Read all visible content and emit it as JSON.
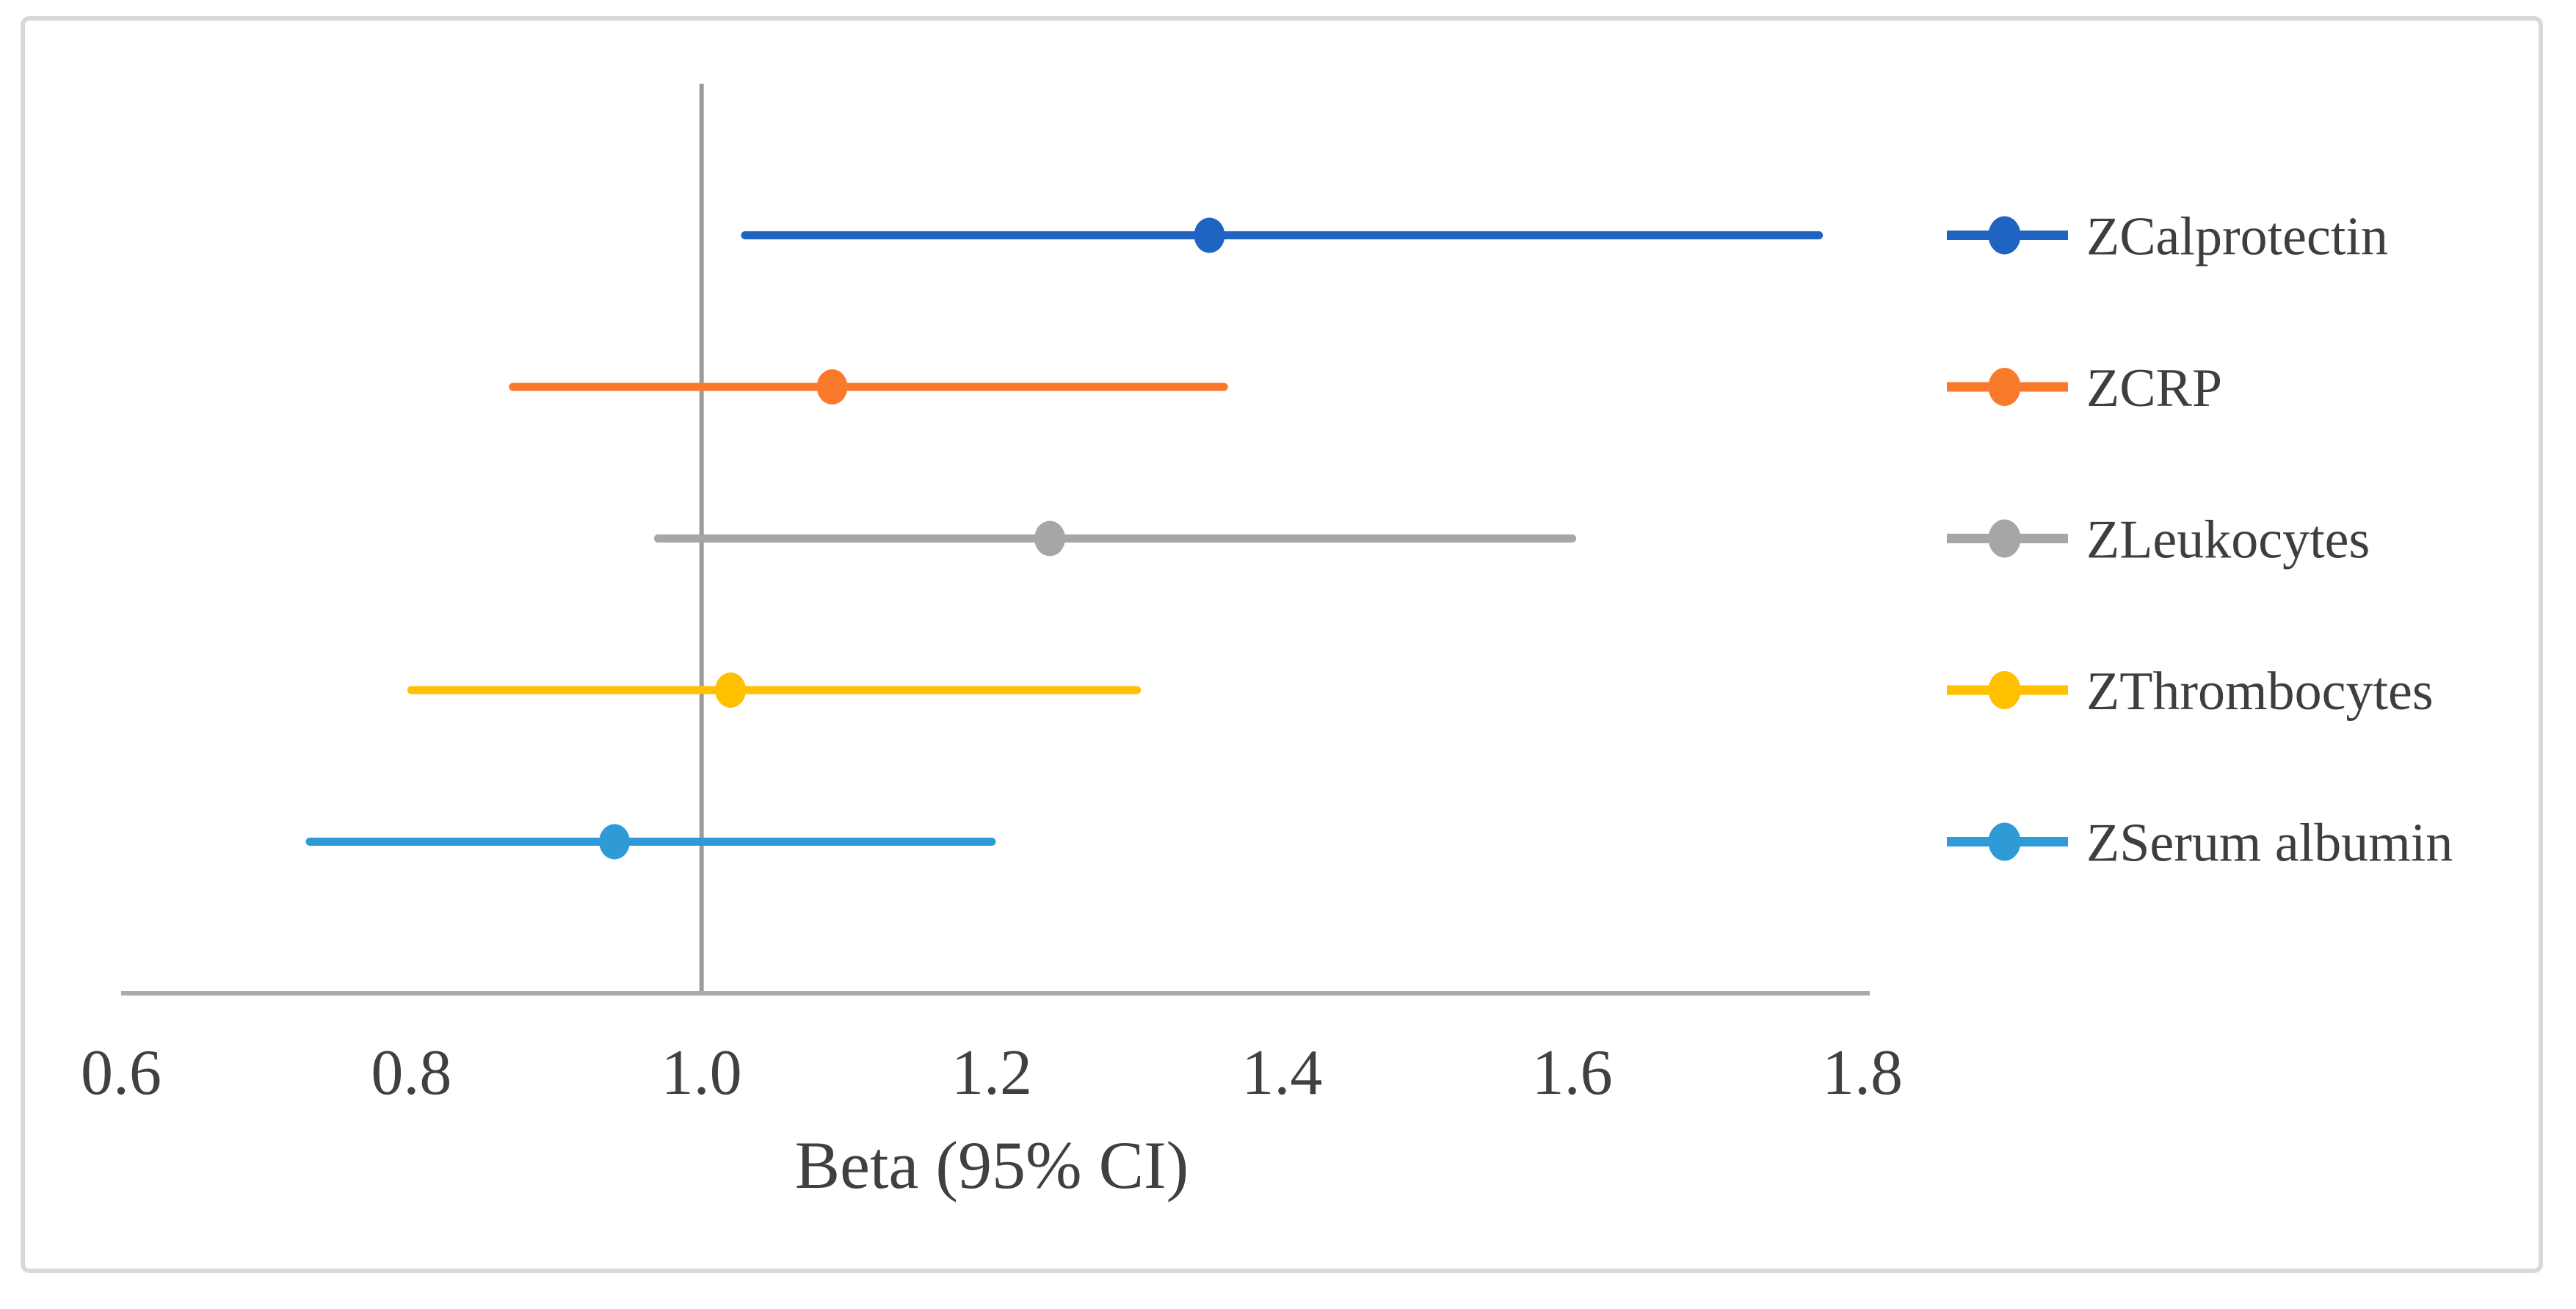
{
  "figure": {
    "xlabel": "Beta (95% CI)",
    "plot_type_note": "forest plot of beta coefficients with 95% confidence intervals"
  },
  "chart_data": {
    "type": "scatter",
    "subtype": "forest-plot",
    "title": "",
    "xlabel": "Beta (95% CI)",
    "ylabel": "",
    "xlim": [
      0.6,
      1.8
    ],
    "x_ticks": [
      0.6,
      0.8,
      1.0,
      1.2,
      1.4,
      1.6,
      1.8
    ],
    "reference_line_x": 1.0,
    "grid": false,
    "legend_position": "right",
    "series": [
      {
        "name": "ZCalprotectin",
        "beta": 1.35,
        "ci_low": 1.03,
        "ci_high": 1.77,
        "row": 5,
        "color": "#2064c1"
      },
      {
        "name": "ZCRP",
        "beta": 1.09,
        "ci_low": 0.87,
        "ci_high": 1.36,
        "row": 4,
        "color": "#f97a2b"
      },
      {
        "name": "ZLeukocytes",
        "beta": 1.24,
        "ci_low": 0.97,
        "ci_high": 1.6,
        "row": 3,
        "color": "#a6a6a6"
      },
      {
        "name": "ZThrombocytes",
        "beta": 1.02,
        "ci_low": 0.8,
        "ci_high": 1.3,
        "row": 2,
        "color": "#ffc000"
      },
      {
        "name": "ZSerum albumin",
        "beta": 0.94,
        "ci_low": 0.73,
        "ci_high": 1.2,
        "row": 1,
        "color": "#2e9bd6"
      }
    ],
    "colors": {
      "reference_line": "#9c9c9c",
      "axis_line": "#ababab",
      "tick_label_text": "#404040",
      "axis_title_text": "#404040",
      "legend_text": "#3e3e3e",
      "frame_border": "#d8d8d8",
      "background": "#ffffff"
    }
  }
}
